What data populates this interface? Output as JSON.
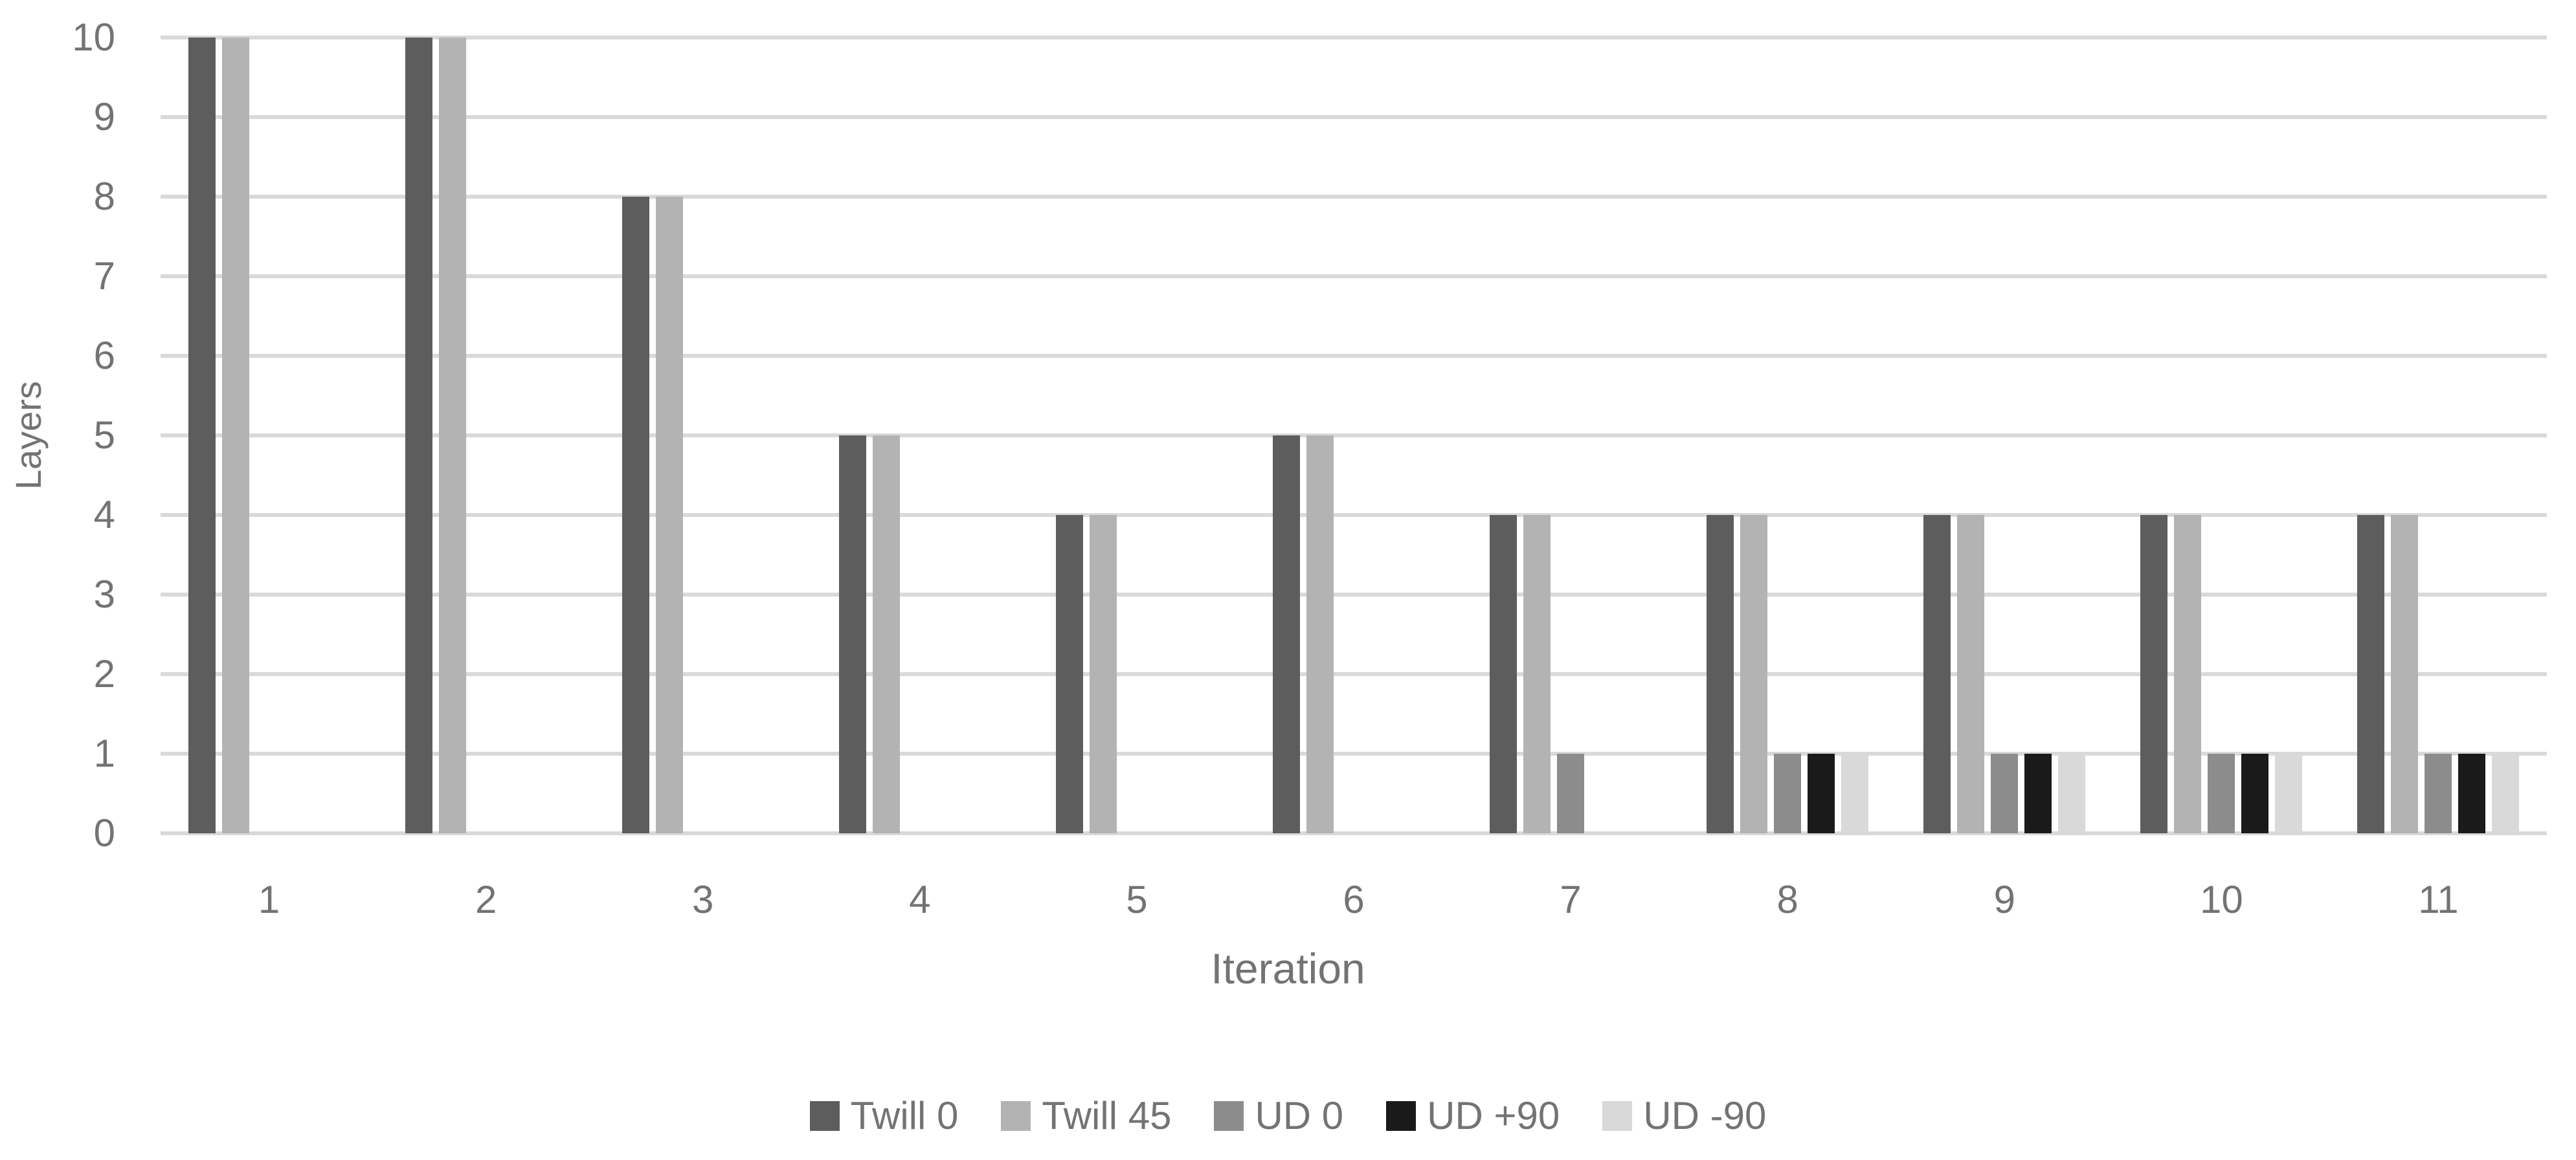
{
  "chart_data": {
    "type": "bar",
    "title": "",
    "xlabel": "Iteration",
    "ylabel": "Layers",
    "categories": [
      "1",
      "2",
      "3",
      "4",
      "5",
      "6",
      "7",
      "8",
      "9",
      "10",
      "11"
    ],
    "series": [
      {
        "name": "Twill 0",
        "color": "#5d5d5d",
        "values": [
          10,
          10,
          8,
          5,
          4,
          5,
          4,
          4,
          4,
          4,
          4
        ]
      },
      {
        "name": "Twill 45",
        "color": "#b3b3b3",
        "values": [
          10,
          10,
          8,
          5,
          4,
          5,
          4,
          4,
          4,
          4,
          4
        ]
      },
      {
        "name": "UD 0",
        "color": "#8c8c8c",
        "values": [
          0,
          0,
          0,
          0,
          0,
          0,
          1,
          1,
          1,
          1,
          1
        ]
      },
      {
        "name": "UD +90",
        "color": "#1a1a1a",
        "values": [
          0,
          0,
          0,
          0,
          0,
          0,
          0,
          1,
          1,
          1,
          1
        ]
      },
      {
        "name": "UD -90",
        "color": "#d9d9d9",
        "values": [
          0,
          0,
          0,
          0,
          0,
          0,
          0,
          1,
          1,
          1,
          1
        ]
      }
    ],
    "ylim": [
      0,
      10
    ],
    "yticks": [
      0,
      1,
      2,
      3,
      4,
      5,
      6,
      7,
      8,
      9,
      10
    ],
    "grid": true,
    "gridline_color": "#d9d9d9",
    "text_color": "#737373",
    "legend_position": "bottom"
  }
}
